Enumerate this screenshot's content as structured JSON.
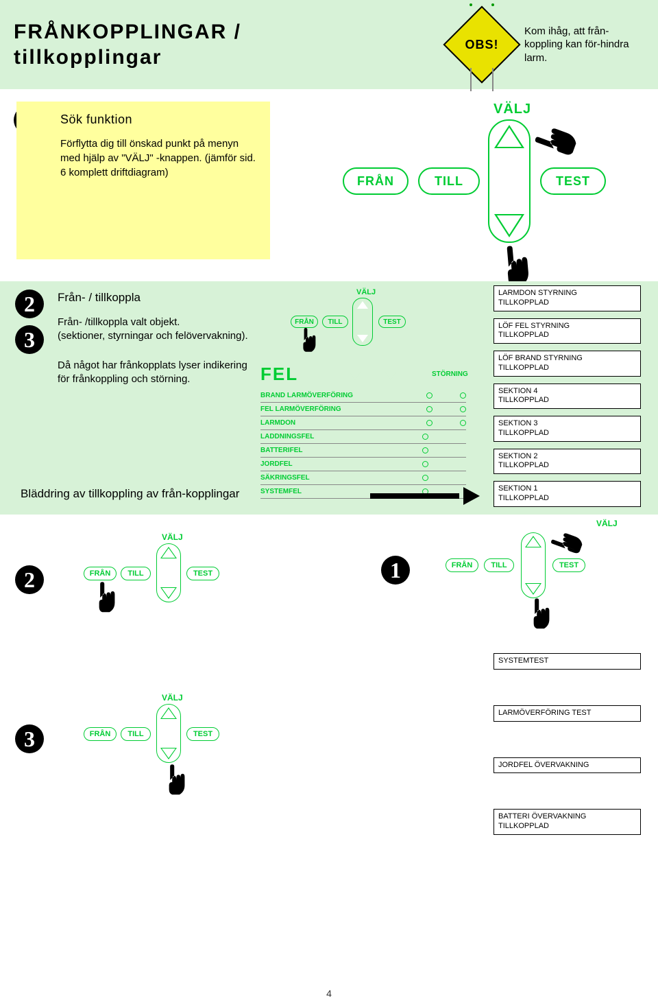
{
  "colors": {
    "band": "#d7f2d7",
    "yellow": "#ffff9e",
    "green": "#00cc33",
    "sign": "#e9e200"
  },
  "header": {
    "title_line1": "FRÅNKOPPLINGAR /",
    "title_line2": "tillkopplingar",
    "obs": "OBS!",
    "reminder": "Kom ihåg, att från-koppling kan för-hindra larm."
  },
  "step1": {
    "num": "1",
    "heading": "Sök funktion",
    "body": "Förflytta dig till önskad punkt på menyn med hjälp av \"VÄLJ\" -knappen. (jämför sid. 6 komplett driftdiagram)"
  },
  "navpad": {
    "valj": "VÄLJ",
    "fran": "FRÅN",
    "till": "TILL",
    "test": "TEST"
  },
  "step2": {
    "num": "2",
    "heading": "Från- / tillkoppla"
  },
  "step3": {
    "num": "3",
    "para1": "Från- /tillkoppla valt objekt.",
    "para1b": "(sektioner, styrningar och felövervakning).",
    "para2": "Då något har frånkopplats lyser indikering för frånkoppling och störning."
  },
  "felpanel": {
    "title": "FEL",
    "storning": "STÖRNING",
    "rows": [
      {
        "label": "BRAND LARMÖVERFÖRING",
        "leds": 2
      },
      {
        "label": "FEL LARMÖVERFÖRING",
        "leds": 2
      },
      {
        "label": "LARMDON",
        "leds": 2
      },
      {
        "label": "LADDNINGSFEL",
        "leds": 1
      },
      {
        "label": "BATTERIFEL",
        "leds": 1
      },
      {
        "label": "JORDFEL",
        "leds": 1
      },
      {
        "label": "SÄKRINGSFEL",
        "leds": 1
      },
      {
        "label": "SYSTEMFEL",
        "leds": 1
      }
    ]
  },
  "status1": [
    "LARMDON STYRNING\nTILLKOPPLAD",
    "LÖF FEL STYRNING\nTILLKOPPLAD",
    "LÖF BRAND STYRNING\nTILLKOPPLAD",
    "SEKTION 4\nTILLKOPPLAD",
    "SEKTION 3\nTILLKOPPLAD",
    "SEKTION 2\nTILLKOPPLAD",
    "SEKTION 1\nTILLKOPPLAD"
  ],
  "browse": "Bläddring av tillkoppling av från-kopplingar",
  "bottom_steps": {
    "n1": "1",
    "n2": "2",
    "n3": "3"
  },
  "status2": [
    "SYSTEMTEST",
    "LARMÖVERFÖRING TEST",
    "JORDFEL ÖVERVAKNING",
    "BATTERI ÖVERVAKNING\nTILLKOPPLAD"
  ],
  "page": "4"
}
